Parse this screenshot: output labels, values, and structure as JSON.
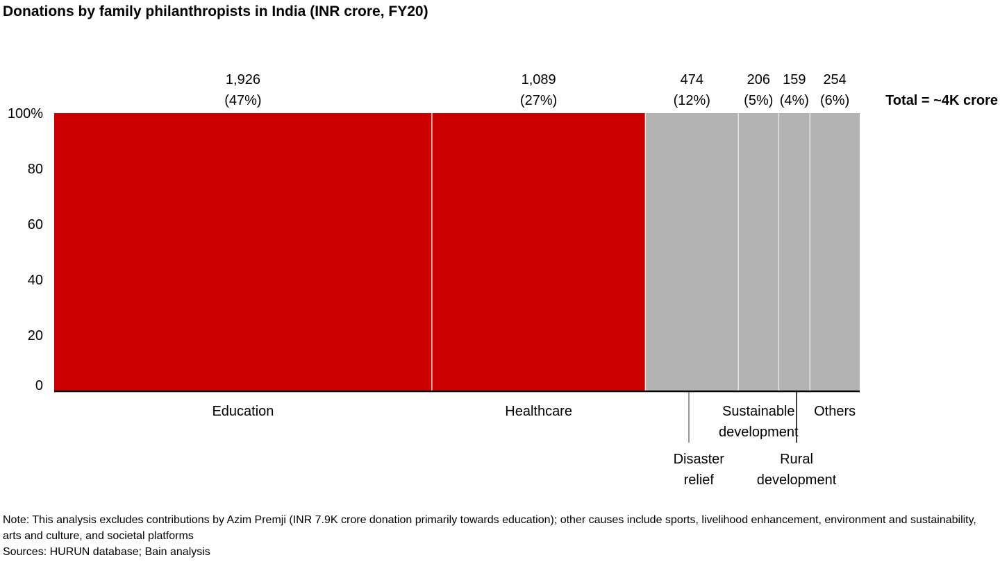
{
  "chart_data": {
    "type": "marimekko",
    "title": "Donations by family philanthropists in India (INR crore, FY20)",
    "yticks": [
      "100%",
      "80",
      "60",
      "40",
      "20",
      "0"
    ],
    "ylim": [
      0,
      100
    ],
    "total_label": "Total = ~4K crore",
    "categories": [
      {
        "name": "Education",
        "value": 1926,
        "value_label": "1,926",
        "pct_label": "(47%)",
        "color": "#cc0000",
        "label_lines": [
          "Education"
        ],
        "label_pos": "below"
      },
      {
        "name": "Healthcare",
        "value": 1089,
        "value_label": "1,089",
        "pct_label": "(27%)",
        "color": "#cc0000",
        "label_lines": [
          "Healthcare"
        ],
        "label_pos": "below"
      },
      {
        "name": "Disaster relief",
        "value": 474,
        "value_label": "474",
        "pct_label": "(12%)",
        "color": "#b3b3b3",
        "label_lines": [
          "Disaster",
          "relief"
        ],
        "label_pos": "leader"
      },
      {
        "name": "Sustainable development",
        "value": 206,
        "value_label": "206",
        "pct_label": "(5%)",
        "color": "#b3b3b3",
        "label_lines": [
          "Sustainable",
          "development"
        ],
        "label_pos": "below"
      },
      {
        "name": "Rural development",
        "value": 159,
        "value_label": "159",
        "pct_label": "(4%)",
        "color": "#b3b3b3",
        "label_lines": [
          "Rural",
          "development"
        ],
        "label_pos": "leader"
      },
      {
        "name": "Others",
        "value": 254,
        "value_label": "254",
        "pct_label": "(6%)",
        "color": "#b3b3b3",
        "label_lines": [
          "Others"
        ],
        "label_pos": "below"
      }
    ]
  },
  "notes": {
    "note": "Note: This analysis excludes contributions by Azim Premji (INR 7.9K crore donation primarily towards education); other causes include sports, livelihood enhancement, environment and sustainability, arts and culture, and societal platforms",
    "sources": "Sources: HURUN database; Bain analysis"
  }
}
